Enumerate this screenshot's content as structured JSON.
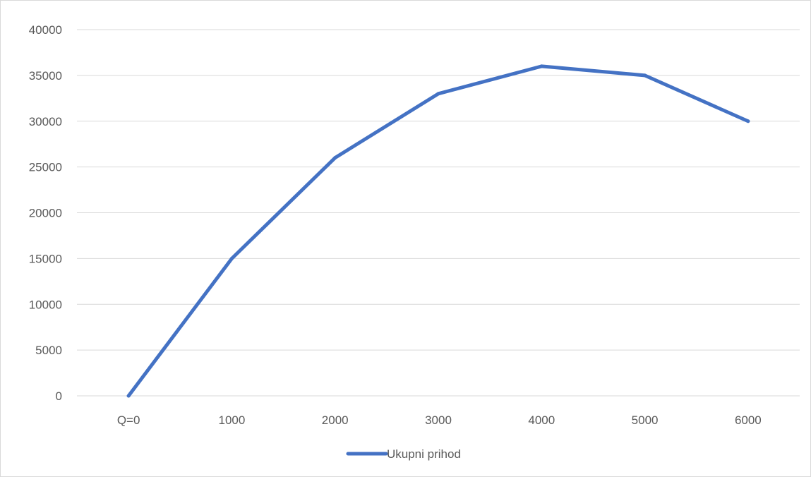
{
  "chart_data": {
    "type": "line",
    "categories": [
      "Q=0",
      "1000",
      "2000",
      "3000",
      "4000",
      "5000",
      "6000"
    ],
    "series": [
      {
        "name": "Ukupni prihod",
        "values": [
          0,
          15000,
          26000,
          33000,
          36000,
          35000,
          30000
        ],
        "color": "#4472c4"
      }
    ],
    "title": "",
    "xlabel": "",
    "ylabel": "",
    "ylim": [
      0,
      40000
    ],
    "yticks": [
      "0",
      "5000",
      "10000",
      "15000",
      "20000",
      "25000",
      "30000",
      "35000",
      "40000"
    ],
    "grid": true,
    "gridColor": "#d9d9d9",
    "legend_position": "bottom"
  }
}
